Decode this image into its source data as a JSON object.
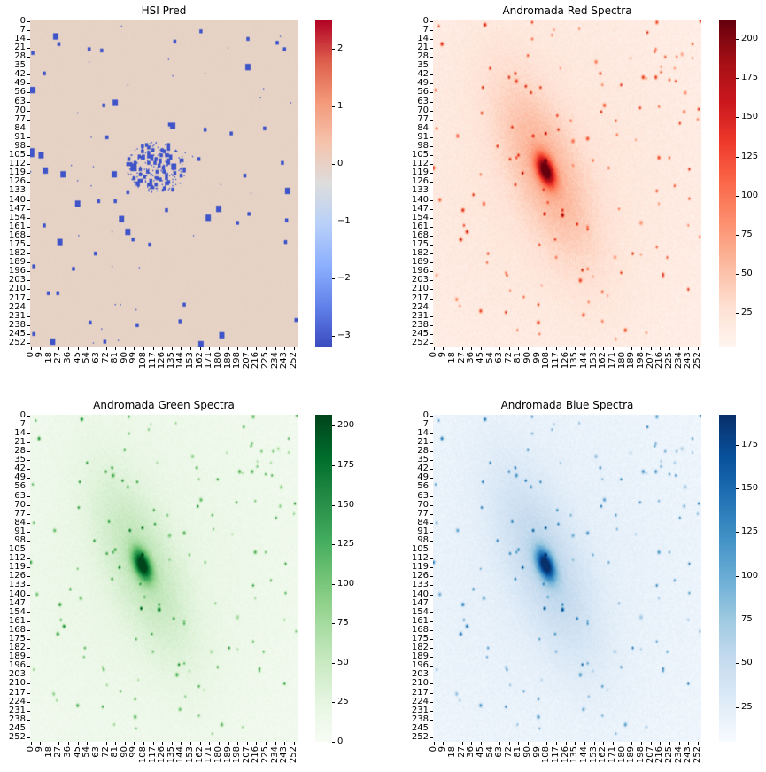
{
  "chart_data": [
    {
      "type": "heatmap",
      "title": "HSI Pred",
      "colormap": "coolwarm",
      "colors": {
        "low": "#3b4cc0",
        "mid": "#dddddd",
        "high": "#f2cbb7"
      },
      "x_ticks": [
        "0",
        "9",
        "18",
        "27",
        "36",
        "45",
        "54",
        "63",
        "72",
        "81",
        "90",
        "99",
        "108",
        "117",
        "126",
        "135",
        "144",
        "153",
        "162",
        "171",
        "180",
        "189",
        "198",
        "207",
        "216",
        "225",
        "234",
        "243",
        "252"
      ],
      "y_ticks": [
        "0",
        "7",
        "14",
        "21",
        "28",
        "35",
        "42",
        "49",
        "56",
        "63",
        "70",
        "77",
        "84",
        "91",
        "98",
        "105",
        "112",
        "119",
        "126",
        "133",
        "140",
        "147",
        "154",
        "161",
        "168",
        "175",
        "182",
        "189",
        "196",
        "203",
        "210",
        "217",
        "224",
        "231",
        "238",
        "245",
        "252"
      ],
      "colorbar_ticks": [
        "2",
        "1",
        "0",
        "−1",
        "−2",
        "−3"
      ],
      "colorbar_range": [
        -3.2,
        2.5
      ]
    },
    {
      "type": "heatmap",
      "title": "Andromada Red Spectra",
      "colormap": "Reds",
      "colors": {
        "low": "#fff5f0",
        "high": "#67000d"
      },
      "x_ticks": [
        "0",
        "9",
        "18",
        "27",
        "36",
        "45",
        "54",
        "63",
        "72",
        "81",
        "90",
        "99",
        "108",
        "117",
        "126",
        "135",
        "144",
        "153",
        "162",
        "171",
        "180",
        "189",
        "198",
        "207",
        "216",
        "225",
        "234",
        "243",
        "252"
      ],
      "y_ticks": [
        "0",
        "7",
        "14",
        "21",
        "28",
        "35",
        "42",
        "49",
        "56",
        "63",
        "70",
        "77",
        "84",
        "91",
        "98",
        "105",
        "112",
        "119",
        "126",
        "133",
        "140",
        "147",
        "154",
        "161",
        "168",
        "175",
        "182",
        "189",
        "196",
        "203",
        "210",
        "217",
        "224",
        "231",
        "238",
        "245",
        "252"
      ],
      "colorbar_ticks": [
        "200",
        "175",
        "150",
        "125",
        "100",
        "75",
        "50",
        "25"
      ],
      "colorbar_range": [
        3,
        212
      ]
    },
    {
      "type": "heatmap",
      "title": "Andromada Green Spectra",
      "colormap": "Greens",
      "colors": {
        "low": "#f7fcf5",
        "high": "#00441b"
      },
      "x_ticks": [
        "0",
        "9",
        "18",
        "27",
        "36",
        "45",
        "54",
        "63",
        "72",
        "81",
        "90",
        "99",
        "108",
        "117",
        "126",
        "135",
        "144",
        "153",
        "162",
        "171",
        "180",
        "189",
        "198",
        "207",
        "216",
        "225",
        "234",
        "243",
        "252"
      ],
      "y_ticks": [
        "0",
        "7",
        "14",
        "21",
        "28",
        "35",
        "42",
        "49",
        "56",
        "63",
        "70",
        "77",
        "84",
        "91",
        "98",
        "105",
        "112",
        "119",
        "126",
        "133",
        "140",
        "147",
        "154",
        "161",
        "168",
        "175",
        "182",
        "189",
        "196",
        "203",
        "210",
        "217",
        "224",
        "231",
        "238",
        "245",
        "252"
      ],
      "colorbar_ticks": [
        "200",
        "175",
        "150",
        "125",
        "100",
        "75",
        "50",
        "25",
        "0"
      ],
      "colorbar_range": [
        0,
        207
      ]
    },
    {
      "type": "heatmap",
      "title": "Andromada Blue Spectra",
      "colormap": "Blues",
      "colors": {
        "low": "#f7fbff",
        "high": "#08306b"
      },
      "x_ticks": [
        "0",
        "9",
        "18",
        "27",
        "36",
        "45",
        "54",
        "63",
        "72",
        "81",
        "90",
        "99",
        "108",
        "117",
        "126",
        "135",
        "144",
        "153",
        "162",
        "171",
        "180",
        "189",
        "198",
        "207",
        "216",
        "225",
        "234",
        "243",
        "252"
      ],
      "y_ticks": [
        "0",
        "7",
        "14",
        "21",
        "28",
        "35",
        "42",
        "49",
        "56",
        "63",
        "70",
        "77",
        "84",
        "91",
        "98",
        "105",
        "112",
        "119",
        "126",
        "133",
        "140",
        "147",
        "154",
        "161",
        "168",
        "175",
        "182",
        "189",
        "196",
        "203",
        "210",
        "217",
        "224",
        "231",
        "238",
        "245",
        "252"
      ],
      "colorbar_ticks": [
        "175",
        "150",
        "125",
        "100",
        "75",
        "50",
        "25"
      ],
      "colorbar_range": [
        5,
        192
      ]
    }
  ]
}
